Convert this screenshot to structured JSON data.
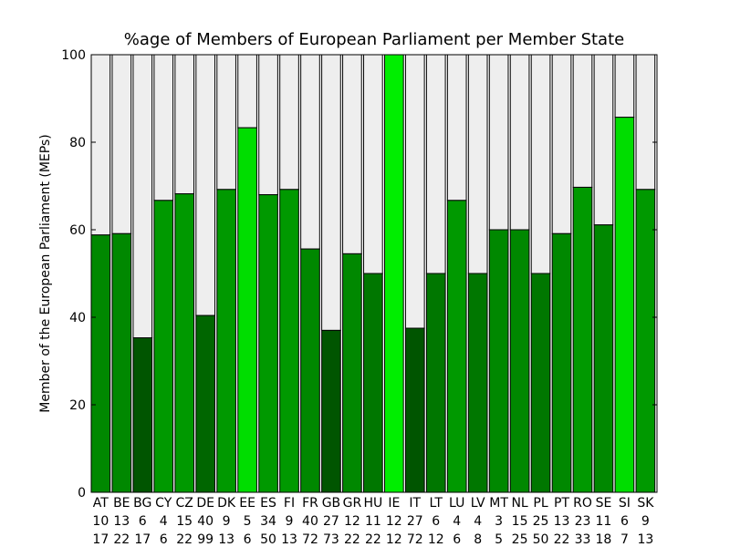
{
  "chart_data": {
    "type": "bar",
    "stacked": true,
    "title": "%age of Members of European Parliament per Member State",
    "xlabel": "",
    "ylabel": "Member of the European Parliament (MEPs)",
    "ylim": [
      0,
      100
    ],
    "yticks": [
      0,
      20,
      40,
      60,
      80,
      100
    ],
    "grid": false,
    "legend": "none",
    "colors": {
      "background_bar": "#eeeeee",
      "edge": "#000000"
    },
    "categories": [
      {
        "code": "AT",
        "line2": "10",
        "line3": "17",
        "value": 58.8,
        "color": "#008800"
      },
      {
        "code": "BE",
        "line2": "13",
        "line3": "22",
        "value": 59.1,
        "color": "#008800"
      },
      {
        "code": "BG",
        "line2": "6",
        "line3": "17",
        "value": 35.3,
        "color": "#005500"
      },
      {
        "code": "CY",
        "line2": "4",
        "line3": "6",
        "value": 66.7,
        "color": "#009900"
      },
      {
        "code": "CZ",
        "line2": "15",
        "line3": "22",
        "value": 68.2,
        "color": "#009900"
      },
      {
        "code": "DE",
        "line2": "40",
        "line3": "99",
        "value": 40.4,
        "color": "#006600"
      },
      {
        "code": "DK",
        "line2": "9",
        "line3": "13",
        "value": 69.2,
        "color": "#009900"
      },
      {
        "code": "EE",
        "line2": "5",
        "line3": "6",
        "value": 83.3,
        "color": "#00dd00"
      },
      {
        "code": "ES",
        "line2": "34",
        "line3": "50",
        "value": 68.0,
        "color": "#009900"
      },
      {
        "code": "FI",
        "line2": "9",
        "line3": "13",
        "value": 69.2,
        "color": "#009900"
      },
      {
        "code": "FR",
        "line2": "40",
        "line3": "72",
        "value": 55.6,
        "color": "#008800"
      },
      {
        "code": "GB",
        "line2": "27",
        "line3": "73",
        "value": 37.0,
        "color": "#005500"
      },
      {
        "code": "GR",
        "line2": "12",
        "line3": "22",
        "value": 54.5,
        "color": "#008800"
      },
      {
        "code": "HU",
        "line2": "11",
        "line3": "22",
        "value": 50.0,
        "color": "#007700"
      },
      {
        "code": "IE",
        "line2": "12",
        "line3": "12",
        "value": 100.0,
        "color": "#00ee00"
      },
      {
        "code": "IT",
        "line2": "27",
        "line3": "72",
        "value": 37.5,
        "color": "#005500"
      },
      {
        "code": "LT",
        "line2": "6",
        "line3": "12",
        "value": 50.0,
        "color": "#007700"
      },
      {
        "code": "LU",
        "line2": "4",
        "line3": "6",
        "value": 66.7,
        "color": "#009900"
      },
      {
        "code": "LV",
        "line2": "4",
        "line3": "8",
        "value": 50.0,
        "color": "#007700"
      },
      {
        "code": "MT",
        "line2": "3",
        "line3": "5",
        "value": 60.0,
        "color": "#008800"
      },
      {
        "code": "NL",
        "line2": "15",
        "line3": "25",
        "value": 60.0,
        "color": "#008800"
      },
      {
        "code": "PL",
        "line2": "25",
        "line3": "50",
        "value": 50.0,
        "color": "#007700"
      },
      {
        "code": "PT",
        "line2": "13",
        "line3": "22",
        "value": 59.1,
        "color": "#008800"
      },
      {
        "code": "RO",
        "line2": "23",
        "line3": "33",
        "value": 69.7,
        "color": "#009900"
      },
      {
        "code": "SE",
        "line2": "11",
        "line3": "18",
        "value": 61.1,
        "color": "#008800"
      },
      {
        "code": "SI",
        "line2": "6",
        "line3": "7",
        "value": 85.7,
        "color": "#00dd00"
      },
      {
        "code": "SK",
        "line2": "9",
        "line3": "13",
        "value": 69.2,
        "color": "#009900"
      }
    ]
  }
}
